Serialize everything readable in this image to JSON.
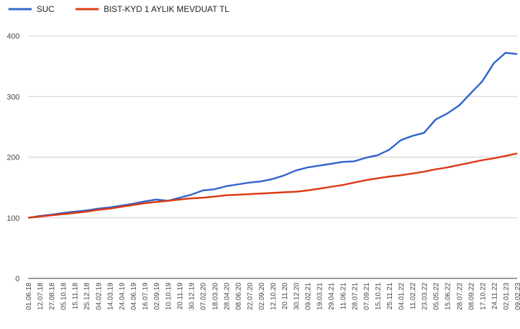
{
  "chart_data": {
    "type": "line",
    "categories": [
      "01.06.18",
      "12.07.18",
      "27.08.18",
      "05.10.18",
      "15.11.18",
      "25.12.18",
      "04.02.19",
      "14.03.19",
      "24.04.19",
      "04.06.19",
      "16.07.19",
      "02.09.19",
      "10.10.19",
      "20.11.19",
      "30.12.19",
      "07.02.20",
      "18.03.20",
      "28.04.20",
      "08.06.20",
      "22.07.20",
      "02.09.20",
      "12.10.20",
      "20.11.20",
      "30.12.20",
      "09.02.21",
      "19.03.21",
      "29.04.21",
      "11.06.21",
      "28.07.21",
      "07.09.21",
      "15.10.21",
      "25.11.21",
      "04.01.22",
      "11.02.22",
      "23.03.22",
      "05.05.22",
      "15.06.22",
      "28.07.22",
      "08.09.22",
      "17.10.22",
      "24.11.22",
      "02.01.23",
      "09.02.23"
    ],
    "series": [
      {
        "name": "SUC",
        "color": "#3366cc",
        "values": [
          100,
          103,
          105,
          108,
          110,
          112,
          115,
          117,
          120,
          123,
          127,
          130,
          128,
          133,
          138,
          145,
          147,
          152,
          155,
          158,
          160,
          164,
          170,
          178,
          183,
          186,
          189,
          192,
          193,
          199,
          203,
          212,
          228,
          235,
          240,
          262,
          272,
          285,
          305,
          325,
          355,
          372,
          370
        ]
      },
      {
        "name": "BIST-KYD 1 AYLIK MEVDUAT TL",
        "color": "#dc3912",
        "values": [
          100,
          102,
          104,
          106,
          108,
          110,
          113,
          115,
          118,
          121,
          124,
          126,
          128,
          130,
          132,
          133,
          135,
          137,
          138,
          139,
          140,
          141,
          142,
          143,
          145,
          148,
          151,
          154,
          158,
          162,
          165,
          168,
          170,
          173,
          176,
          180,
          183,
          187,
          191,
          195,
          198,
          202,
          206
        ]
      }
    ],
    "ylim": [
      0,
      400
    ],
    "yticks": [
      0,
      100,
      200,
      300,
      400
    ],
    "grid": true,
    "legend": "top"
  }
}
